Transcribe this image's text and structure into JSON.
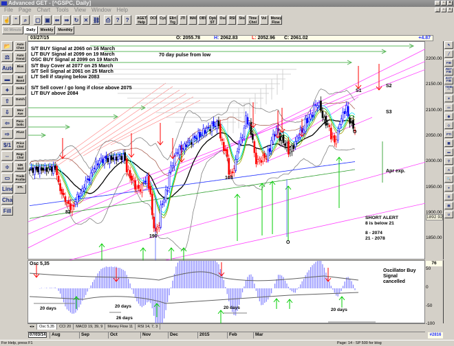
{
  "window": {
    "title": "Advanced GET - [^GSPC, Daily]"
  },
  "menu": [
    "File",
    "Page",
    "Chart",
    "Tools",
    "View",
    "Window",
    "Help"
  ],
  "toolbar": {
    "icons": [
      "hand-icon",
      "quote-icon",
      "search-icon",
      "new-icon",
      "save-icon",
      "back-icon",
      "forward-icon",
      "refresh-icon",
      "crosshair-icon",
      "link-icon",
      "print-icon",
      "help-icon",
      "context-help-icon"
    ],
    "studies": [
      "AGET Help",
      "OCI",
      "Cycles",
      "Ellrt Trg",
      "JTI",
      "MACD",
      "OBV",
      "Opts ST",
      "Osc",
      "RSI",
      "Stock",
      "Time Chnl",
      "Vol",
      "Money Flow"
    ]
  },
  "period_tabs": [
    {
      "label": "60 Minute",
      "disabled": true
    },
    {
      "label": "Daily",
      "selected": true
    },
    {
      "label": "Weekly"
    },
    {
      "label": "Monthly"
    }
  ],
  "info": {
    "date": "03/27/15",
    "open_label": "O:",
    "open": "2055.78",
    "high_label": "H:",
    "high": "2062.83",
    "low_label": "L:",
    "low": "2052.96",
    "close_label": "C:",
    "close": "2061.02",
    "change": "+4.87"
  },
  "left_tools_1": [
    "📂",
    "⚖",
    "Auto",
    "▬",
    "✦",
    "⇧",
    "⇩",
    "⇦",
    "⇨",
    "$/1",
    "⇔",
    "≑",
    "▭",
    "Line",
    "Chan",
    "Fill"
  ],
  "left_tools_2": [
    "Auto Chan",
    "Auto Trend",
    "Bias",
    "Bol Band",
    "Delta",
    "Dutch",
    "Mov Ave",
    "Para-bolic",
    "Pivot",
    "Price Chnl",
    "Regr. Chnl",
    "S/R Wall",
    "Trade Profile",
    "XTL"
  ],
  "right_tools": [
    "✎",
    "╱",
    "FIB RET",
    "FIB EXT",
    "FIB TIME",
    "◠",
    "✶",
    "▭",
    "◉",
    "◇",
    "PTI",
    "▦",
    "▬",
    "⚲",
    "A",
    "🔍",
    "●",
    "⊡",
    "▤",
    "U"
  ],
  "annotations": {
    "signals": [
      "S/T BUY Signal at 2065 on 16 March",
      "L/T BUY Signal at 2099 on 19 March",
      "OSC BUY Signal at 2099 on 19 March",
      "S/T Buy Cover at 2077 on 25 March",
      "S/T Sell Signal at 2061 on 25 March",
      "L/T Sell if staying below 2083"
    ],
    "signals2": [
      "S/T Sell cover / go long if close above 2075",
      "L/T BUY above 2084"
    ],
    "pulse": "70 day pulse from low",
    "s1": "S1",
    "s2": "S2",
    "s3": "S3",
    "apr": "Apr exp.",
    "short_alert": [
      "SHORT ALERT",
      "8 is below 21",
      "8   - 2074",
      "21 - 2078"
    ],
    "counts": [
      "82",
      "190",
      "103",
      "O",
      "O"
    ]
  },
  "price_axis": {
    "ticks": [
      "2200.00",
      "2150.00",
      "2100.00",
      "2050.00",
      "2000.00",
      "1950.00",
      "1900.00",
      "1850.00"
    ],
    "current": "1892.92"
  },
  "oscillator": {
    "title": "Osc 5,35",
    "top_value": "76",
    "ticks": [
      "50",
      "0",
      "-50",
      "-100"
    ],
    "notes": [
      "Oscillator Buy Signal",
      "cancelled"
    ],
    "day_labels": [
      "20 days",
      "20 days",
      "26 days",
      "20 days",
      "20 days"
    ]
  },
  "osc_tabs": [
    "Osc 5,35",
    "CCI 20",
    "MACD 19, 39, 9",
    "Money Flow 11",
    "RSI 14, 7, 3"
  ],
  "date_axis": {
    "start": "07/03/14",
    "labels": [
      "Aug",
      "Sep",
      "Oct",
      "Nov",
      "Dec",
      "2015",
      "Feb",
      "Mar"
    ],
    "bar_count": "#2816"
  },
  "status": {
    "left": "For Help, press F1",
    "right": "Page: 14 - SP 500 for blog"
  },
  "colors": {
    "up": "#0000ff",
    "down": "#ff0000",
    "neutral": "#000000",
    "buy_arrow": "#00cc00",
    "sell_arrow": "#ff0000",
    "channel": "#ff40ff",
    "osc_bar": "#8080ff"
  },
  "chart_data": {
    "type": "candlestick",
    "symbol": "^GSPC",
    "ylim": [
      1820,
      2230
    ],
    "price_path": [
      [
        "2014-07-03",
        1985
      ],
      [
        "2014-07-24",
        1988
      ],
      [
        "2014-07-31",
        1931
      ],
      [
        "2014-08-07",
        1910
      ],
      [
        "2014-08-29",
        2003
      ],
      [
        "2014-09-18",
        2011
      ],
      [
        "2014-09-25",
        1966
      ],
      [
        "2014-10-01",
        1946
      ],
      [
        "2014-10-08",
        1968
      ],
      [
        "2014-10-15",
        1862
      ],
      [
        "2014-10-31",
        2018
      ],
      [
        "2014-11-28",
        2067
      ],
      [
        "2014-12-05",
        2075
      ],
      [
        "2014-12-16",
        1972
      ],
      [
        "2014-12-29",
        2090
      ],
      [
        "2015-01-06",
        2002
      ],
      [
        "2015-01-14",
        2011
      ],
      [
        "2015-01-22",
        2063
      ],
      [
        "2015-02-02",
        2020
      ],
      [
        "2015-02-25",
        2115
      ],
      [
        "2015-03-11",
        2040
      ],
      [
        "2015-03-20",
        2108
      ],
      [
        "2015-03-27",
        2061
      ]
    ]
  }
}
